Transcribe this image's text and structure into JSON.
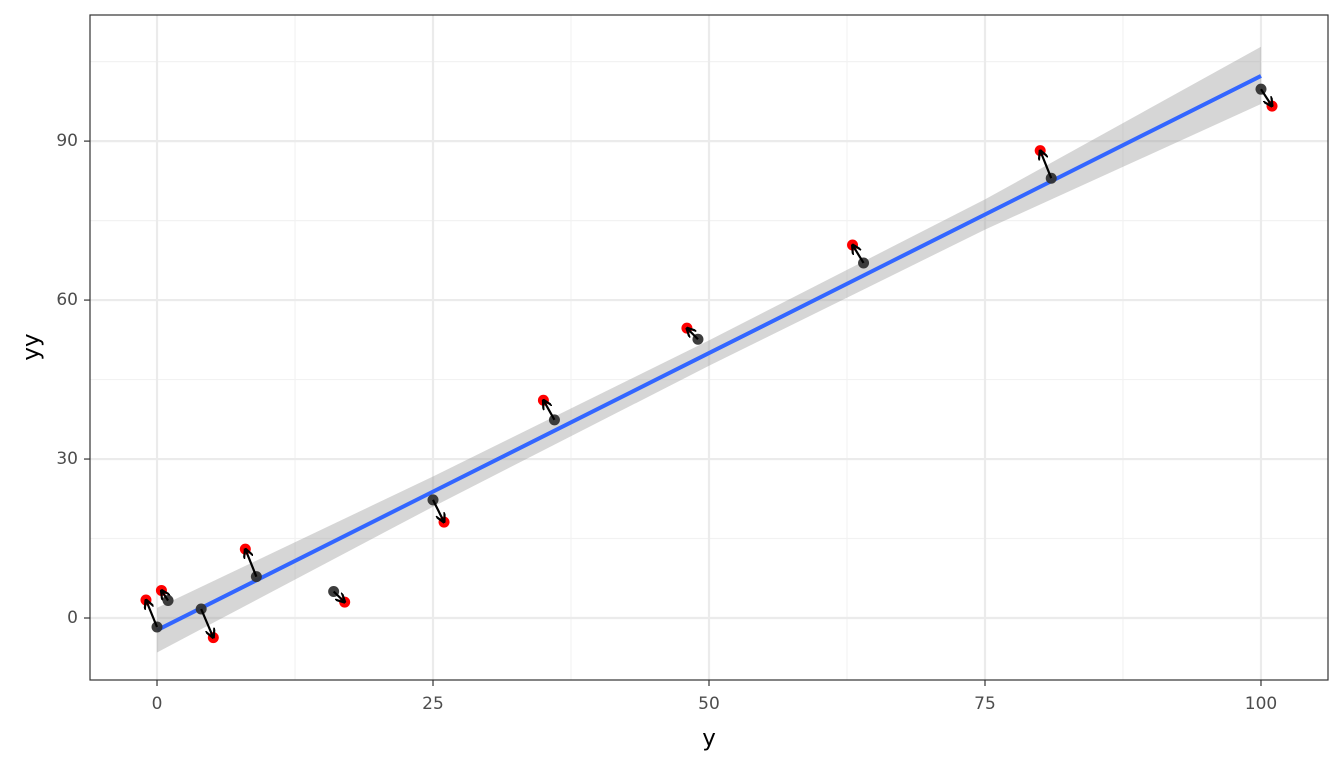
{
  "chart_data": {
    "type": "scatter",
    "x_label": "y",
    "y_label": "yy",
    "xlim": [
      -6.07,
      106.07
    ],
    "ylim": [
      -11.7,
      113.8
    ],
    "xticks": [
      0,
      25,
      50,
      75,
      100
    ],
    "yticks": [
      0,
      30,
      60,
      90
    ],
    "minor_xticks": [
      12.5,
      37.5,
      62.5,
      87.5
    ],
    "minor_yticks": [
      -15,
      15,
      45,
      75,
      105
    ],
    "grid": true,
    "series": [
      {
        "color": "#333333",
        "x": [
          0,
          1,
          4,
          9,
          16,
          25,
          36,
          49,
          64,
          81,
          100
        ],
        "values": [
          -1.7,
          3.3,
          1.7,
          7.8,
          5,
          22.3,
          37.4,
          52.6,
          67,
          83,
          99.8
        ]
      },
      {
        "color": "#ff0000",
        "x": [
          -1,
          0.4,
          5.1,
          8,
          17,
          26,
          35,
          48,
          63,
          80,
          101
        ],
        "values": [
          3.4,
          5.2,
          -3.7,
          13,
          3,
          18.1,
          41.1,
          54.7,
          70.4,
          88.2,
          96.6
        ]
      }
    ],
    "arrows": true,
    "fit": {
      "color": "#3366ff",
      "band_color": "#999999",
      "x": [
        0,
        25,
        50,
        75,
        100
      ],
      "values": [
        -2.3,
        23.85,
        50,
        76.15,
        102.3
      ],
      "lower": [
        -6.5,
        21.0,
        47.6,
        73.3,
        97.0
      ],
      "upper": [
        1.9,
        26.7,
        52.4,
        79.0,
        107.8
      ]
    }
  }
}
